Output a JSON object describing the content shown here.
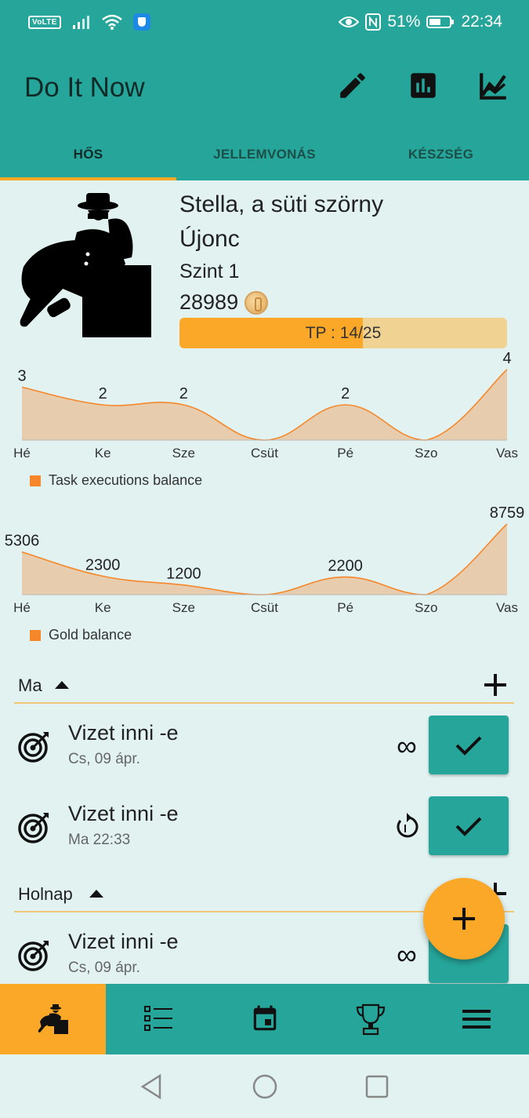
{
  "status_bar": {
    "network_badge": "VoLTE",
    "battery": "51%",
    "time": "22:34",
    "icons": [
      "signal-icon",
      "wifi-icon",
      "vpn-shield-icon",
      "eye-comfort-icon",
      "nfc-icon",
      "battery-icon"
    ]
  },
  "app_bar": {
    "title": "Do It Now",
    "actions": [
      "edit-icon",
      "bar-chart-icon",
      "line-chart-icon"
    ]
  },
  "tabs": [
    {
      "label": "HŐS",
      "active": true
    },
    {
      "label": "JELLEMVONÁS",
      "active": false
    },
    {
      "label": "KÉSZSÉG",
      "active": false
    }
  ],
  "hero": {
    "name": "Stella, a süti szörny",
    "rank": "Újonc",
    "level": "Szint 1",
    "gold": "28989",
    "xp_text": "TP : 14/25",
    "xp_current": 14,
    "xp_max": 25
  },
  "chart_data": [
    {
      "type": "area",
      "categories": [
        "Hé",
        "Ke",
        "Sze",
        "Csüt",
        "Pé",
        "Szo",
        "Vas"
      ],
      "series": [
        {
          "name": "Task executions balance",
          "values": [
            3,
            2,
            2,
            0,
            2,
            0,
            4
          ]
        }
      ],
      "data_labels": [
        "3",
        "2",
        "2",
        "",
        "2",
        "",
        "4"
      ],
      "ylim": [
        0,
        4
      ],
      "grid": false,
      "legend": "bottom-left",
      "color": "#f5872a"
    },
    {
      "type": "area",
      "categories": [
        "Hé",
        "Ke",
        "Sze",
        "Csüt",
        "Pé",
        "Szo",
        "Vas"
      ],
      "series": [
        {
          "name": "Gold balance",
          "values": [
            5306,
            2300,
            1200,
            0,
            2200,
            0,
            8759
          ]
        }
      ],
      "data_labels": [
        "5306",
        "2300",
        "1200",
        "",
        "2200",
        "",
        "8759"
      ],
      "ylim": [
        0,
        8759
      ],
      "grid": false,
      "legend": "bottom-left",
      "color": "#f5872a"
    }
  ],
  "sections": [
    {
      "label": "Ma",
      "tasks": [
        {
          "name": "Vizet inni -e",
          "date": "Cs, 09 ápr.",
          "repeat_icon": "infinity-icon"
        },
        {
          "name": "Vizet inni -e",
          "date": "Ma 22:33",
          "repeat_icon": "repeat-once-icon"
        }
      ]
    },
    {
      "label": "Holnap",
      "tasks": [
        {
          "name": "Vizet inni -e",
          "date": "Cs, 09 ápr.",
          "repeat_icon": "infinity-icon"
        }
      ]
    }
  ],
  "bottom_nav": [
    "hero-icon",
    "task-list-icon",
    "calendar-icon",
    "trophy-icon",
    "menu-icon"
  ],
  "colors": {
    "primary": "#26a69a",
    "accent": "#fba829",
    "background": "#e1f2f1",
    "chart_line": "#f5872a",
    "chart_fill": "#e8c9a6"
  }
}
